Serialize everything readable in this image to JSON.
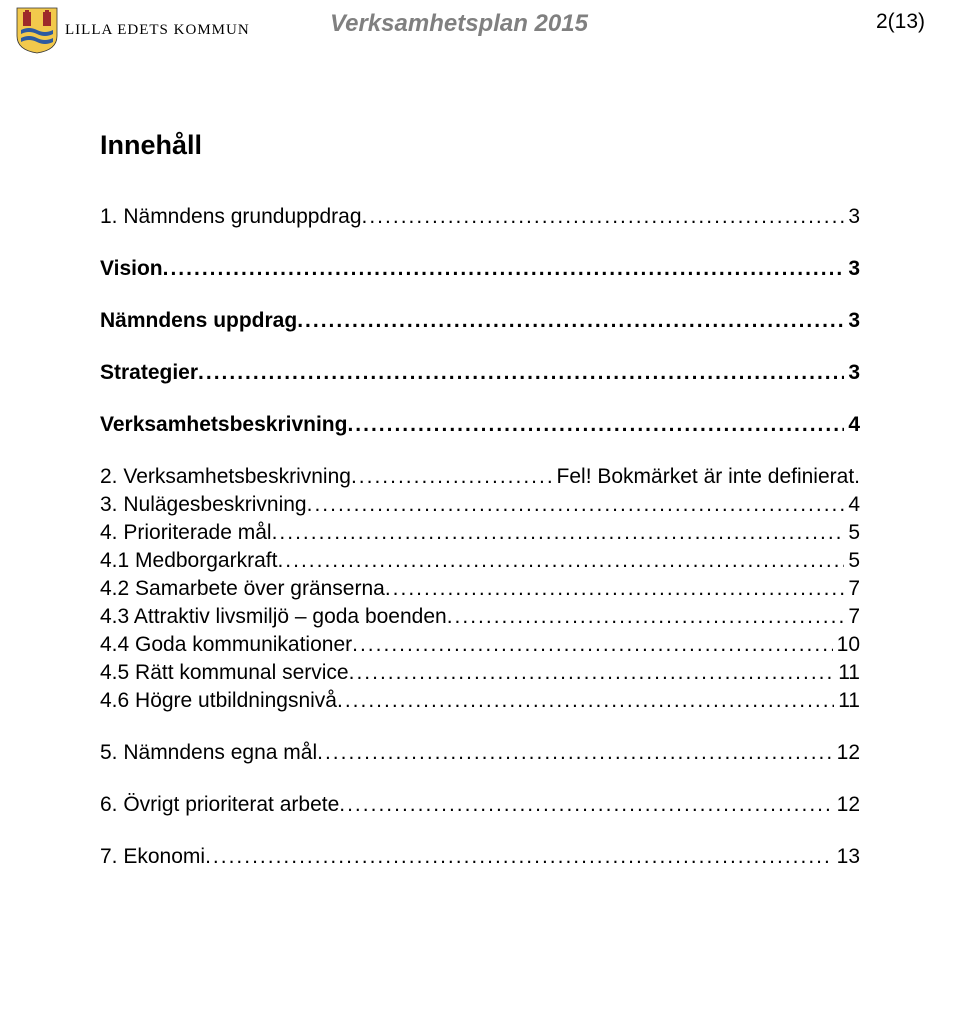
{
  "header": {
    "logo_text": "LILLA EDETS KOMMUN",
    "doc_title": "Verksamhetsplan 2015",
    "page_indicator": "2(13)"
  },
  "toc": {
    "title": "Innehåll",
    "entries": [
      {
        "label": "1. Nämndens grunduppdrag",
        "page": "3",
        "style": "lvl-normal",
        "gap": false
      },
      {
        "label": "Vision",
        "page": "3",
        "style": "lvl-bold",
        "gap": true
      },
      {
        "label": "Nämndens uppdrag",
        "page": "3",
        "style": "lvl-bold",
        "gap": false
      },
      {
        "label": "Strategier",
        "page": "3",
        "style": "lvl-bold",
        "gap": false
      },
      {
        "label": "Verksamhetsbeskrivning",
        "page": "4",
        "style": "lvl-bold",
        "gap": false
      },
      {
        "label": "2. Verksamhetsbeskrivning",
        "page": "Fel! Bokmärket är inte definierat.",
        "style": "lvl-normal",
        "gap": false
      },
      {
        "label": "3. Nulägesbeskrivning",
        "page": "4",
        "style": "lvl-normal",
        "gap": false
      },
      {
        "label": "4. Prioriterade mål",
        "page": "5",
        "style": "lvl-normal",
        "gap": false
      },
      {
        "label": "4.1 Medborgarkraft",
        "page": "5",
        "style": "lvl-normal",
        "gap": false
      },
      {
        "label": "4.2 Samarbete över gränserna",
        "page": "7",
        "style": "lvl-normal",
        "gap": false
      },
      {
        "label": "4.3 Attraktiv livsmiljö – goda boenden",
        "page": "7",
        "style": "lvl-normal",
        "gap": false
      },
      {
        "label": "4.4 Goda kommunikationer",
        "page": "10",
        "style": "lvl-normal",
        "gap": false
      },
      {
        "label": "4.5 Rätt kommunal service",
        "page": "11",
        "style": "lvl-normal",
        "gap": false
      },
      {
        "label": "4.6 Högre utbildningsnivå",
        "page": "11",
        "style": "lvl-normal",
        "gap": false
      },
      {
        "label": "5. Nämndens egna mål",
        "page": "12",
        "style": "lvl-normal",
        "gap": true
      },
      {
        "label": "6. Övrigt prioriterat arbete",
        "page": "12",
        "style": "lvl-normal",
        "gap": true
      },
      {
        "label": "7. Ekonomi",
        "page": "13",
        "style": "lvl-normal",
        "gap": true
      }
    ]
  },
  "colors": {
    "header_title": "#808080",
    "crest_yellow": "#f2c94c",
    "crest_blue": "#2d5aa0",
    "crest_red": "#9e2a2a",
    "text": "#000000",
    "background": "#ffffff"
  },
  "fonts": {
    "body_family": "Arial",
    "logo_family": "Times New Roman",
    "title_size_pt": 20,
    "body_size_pt": 16
  }
}
